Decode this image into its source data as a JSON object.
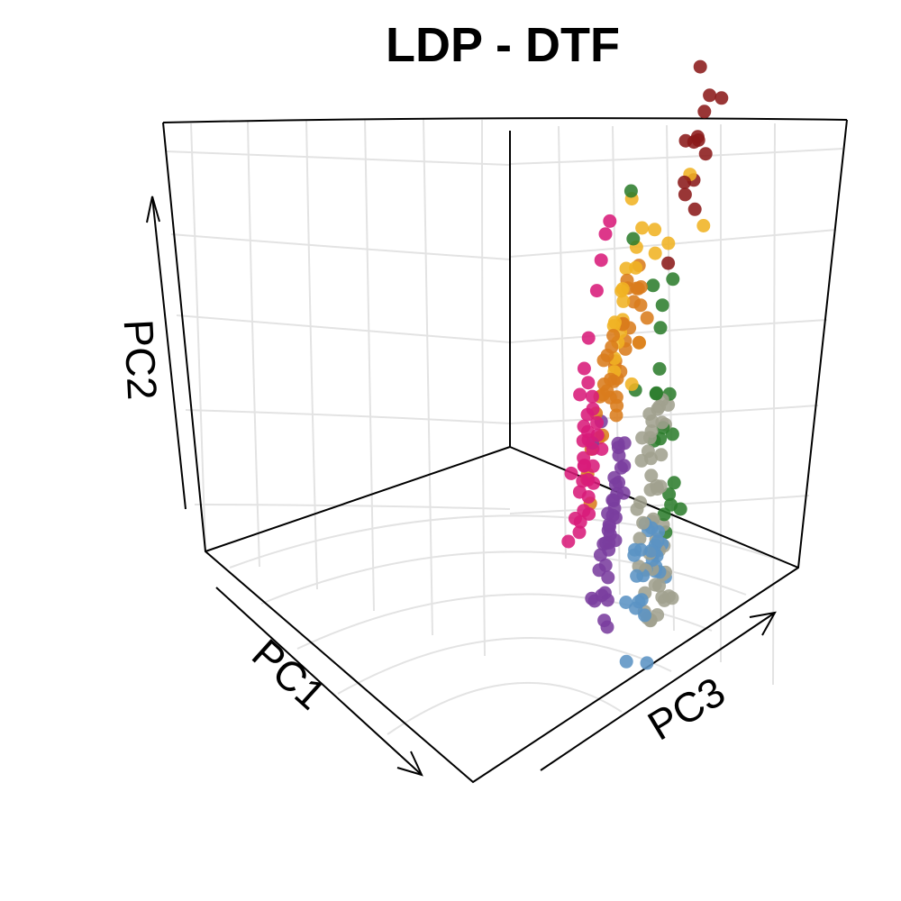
{
  "chart_data": {
    "type": "scatter",
    "projection": "3d",
    "title": "LDP - DTF",
    "axes": {
      "x": "PC1",
      "y": "PC2",
      "z": "PC3"
    },
    "grid": true,
    "legend": "none",
    "groups": [
      {
        "color": "#8B1A1A",
        "points": [
          [
            -7.8,
            5.1,
            -1.2
          ],
          [
            -7.2,
            5.3,
            -0.4
          ],
          [
            -5.6,
            4.3,
            -0.6
          ],
          [
            -5.4,
            4.0,
            0.2
          ],
          [
            -4.8,
            4.6,
            0.5
          ],
          [
            -4.2,
            4.2,
            0.8
          ],
          [
            -4.6,
            3.7,
            0.4
          ],
          [
            -4.0,
            3.4,
            0.9
          ],
          [
            -5.9,
            3.0,
            -0.8
          ],
          [
            -4.8,
            2.4,
            -0.2
          ],
          [
            -5.5,
            2.6,
            -0.9
          ],
          [
            -6.1,
            2.0,
            -1.3
          ],
          [
            -5.2,
            1.7,
            -0.6
          ],
          [
            -6.6,
            1.3,
            -1.5
          ],
          [
            -4.6,
            2.1,
            0.3
          ],
          [
            -3.8,
            1.5,
            0.4
          ]
        ]
      },
      {
        "color": "#F0B323",
        "points": [
          [
            -1.6,
            5.0,
            1.7
          ],
          [
            -1.9,
            4.0,
            2.4
          ],
          [
            -3.9,
            3.6,
            0.9
          ],
          [
            -2.2,
            3.3,
            1.2
          ],
          [
            -3.4,
            3.1,
            1.8
          ],
          [
            -2.6,
            2.9,
            1.3
          ],
          [
            -3.3,
            2.6,
            0.2
          ],
          [
            -1.8,
            2.6,
            1.2
          ],
          [
            -2.5,
            2.4,
            0.6
          ],
          [
            -2.6,
            1.8,
            0.4
          ],
          [
            -1.3,
            2.2,
            1.7
          ],
          [
            -4.3,
            1.6,
            -0.5
          ],
          [
            -2.9,
            1.2,
            0.1
          ],
          [
            -2.2,
            1.4,
            0.6
          ],
          [
            -1.9,
            1.3,
            1.0
          ],
          [
            -3.6,
            -0.2,
            -0.9
          ],
          [
            -3.8,
            1.1,
            -0.5
          ],
          [
            -2.0,
            0.8,
            0.8
          ],
          [
            -1.7,
            1.7,
            1.8
          ],
          [
            -1.9,
            0.6,
            0.9
          ],
          [
            -2.6,
            1.1,
            0.4
          ],
          [
            -1.6,
            0.8,
            1.7
          ]
        ]
      },
      {
        "color": "#D97C1C",
        "points": [
          [
            -3.6,
            1.4,
            -0.2
          ],
          [
            -3.4,
            1.0,
            -0.3
          ],
          [
            -3.0,
            1.6,
            0.1
          ],
          [
            -3.2,
            1.3,
            0.2
          ],
          [
            -2.7,
            1.5,
            0.6
          ],
          [
            -2.5,
            1.1,
            0.5
          ],
          [
            -2.3,
            1.3,
            0.9
          ],
          [
            -2.1,
            1.0,
            1.0
          ],
          [
            -1.9,
            1.4,
            1.2
          ],
          [
            -2.8,
            0.8,
            0.2
          ],
          [
            -2.4,
            0.6,
            0.3
          ],
          [
            -2.2,
            0.4,
            0.6
          ],
          [
            -2.0,
            0.8,
            0.6
          ],
          [
            -1.8,
            0.5,
            0.9
          ],
          [
            -1.6,
            0.7,
            1.2
          ],
          [
            -1.5,
            0.9,
            1.4
          ],
          [
            -1.3,
            0.5,
            1.6
          ],
          [
            -1.2,
            0.8,
            1.7
          ],
          [
            -1.4,
            1.2,
            1.6
          ],
          [
            -1.0,
            0.6,
            1.9
          ],
          [
            -1.7,
            0.2,
            0.8
          ],
          [
            -2.0,
            -0.2,
            0.4
          ],
          [
            -1.8,
            -0.4,
            0.5
          ],
          [
            -1.5,
            -0.6,
            0.9
          ],
          [
            -1.3,
            -0.3,
            1.2
          ],
          [
            -4.4,
            0.0,
            -1.1
          ],
          [
            -3.3,
            -0.1,
            -0.6
          ],
          [
            -2.6,
            0.1,
            0.2
          ],
          [
            -2.2,
            -0.1,
            0.3
          ],
          [
            -1.1,
            -0.5,
            1.1
          ],
          [
            -0.8,
            -0.9,
            1.3
          ],
          [
            -0.6,
            -1.2,
            1.6
          ],
          [
            -1.1,
            -1.1,
            1.0
          ],
          [
            -4.0,
            -1.5,
            -1.6
          ],
          [
            -2.7,
            1.9,
            0.8
          ],
          [
            -2.5,
            1.7,
            1.0
          ],
          [
            -2.1,
            1.9,
            1.6
          ],
          [
            -1.7,
            1.7,
            1.8
          ],
          [
            -1.6,
            0.3,
            1.1
          ],
          [
            -1.9,
            0.1,
            0.7
          ]
        ]
      },
      {
        "color": "#A0A08E",
        "points": [
          [
            -0.6,
            1.8,
            3.6
          ],
          [
            -0.4,
            1.5,
            3.8
          ],
          [
            -0.8,
            1.4,
            3.3
          ],
          [
            -0.2,
            1.7,
            4.1
          ],
          [
            0.1,
            1.3,
            4.3
          ],
          [
            -0.5,
            1.1,
            3.4
          ],
          [
            -0.9,
            0.9,
            3.0
          ],
          [
            -0.2,
            0.8,
            3.7
          ],
          [
            0.4,
            0.9,
            4.6
          ],
          [
            0.2,
            0.6,
            4.3
          ],
          [
            -0.7,
            0.4,
            3.1
          ],
          [
            -0.4,
            0.2,
            3.5
          ],
          [
            0.0,
            0.3,
            3.9
          ],
          [
            0.5,
            0.2,
            4.5
          ],
          [
            0.9,
            0.2,
            5.0
          ],
          [
            1.2,
            0.3,
            5.4
          ],
          [
            1.5,
            0.1,
            5.8
          ],
          [
            1.7,
            0.4,
            6.1
          ],
          [
            1.8,
            0.0,
            6.3
          ],
          [
            2.0,
            0.2,
            6.6
          ],
          [
            1.4,
            -0.3,
            5.5
          ],
          [
            1.0,
            -0.4,
            5.0
          ],
          [
            0.6,
            -0.5,
            4.5
          ],
          [
            0.2,
            -0.3,
            3.9
          ],
          [
            -0.3,
            -0.4,
            3.3
          ],
          [
            -1.0,
            -0.2,
            2.6
          ],
          [
            -1.3,
            0.0,
            2.3
          ],
          [
            -0.5,
            -0.8,
            3.0
          ],
          [
            0.0,
            -0.9,
            3.6
          ],
          [
            0.5,
            -1.0,
            4.1
          ],
          [
            0.8,
            -0.7,
            4.6
          ],
          [
            1.1,
            -0.9,
            4.9
          ],
          [
            1.4,
            -1.0,
            5.2
          ],
          [
            1.7,
            -0.8,
            5.6
          ],
          [
            1.9,
            -0.6,
            5.9
          ],
          [
            2.1,
            -0.4,
            6.1
          ],
          [
            2.2,
            -0.1,
            6.4
          ],
          [
            1.6,
            -0.3,
            5.9
          ],
          [
            1.3,
            1.0,
            5.3
          ],
          [
            0.7,
            1.2,
            4.8
          ],
          [
            0.3,
            1.8,
            4.2
          ],
          [
            0.1,
            2.3,
            4.2
          ],
          [
            0.2,
            2.6,
            4.6
          ],
          [
            1.0,
            0.7,
            5.3
          ],
          [
            2.3,
            0.4,
            6.7
          ],
          [
            0.6,
            -0.2,
            4.9
          ],
          [
            1.2,
            -0.5,
            5.4
          ],
          [
            -1.4,
            0.5,
            2.4
          ]
        ]
      },
      {
        "color": "#2E7D2E",
        "points": [
          [
            -1.2,
            5.6,
            2.1
          ],
          [
            -0.4,
            5.4,
            3.0
          ],
          [
            0.6,
            5.6,
            4.6
          ],
          [
            1.4,
            6.1,
            5.7
          ],
          [
            1.6,
            7.0,
            6.2
          ],
          [
            0.5,
            4.6,
            4.7
          ],
          [
            1.0,
            4.2,
            5.2
          ],
          [
            1.8,
            3.7,
            6.4
          ],
          [
            2.0,
            3.6,
            6.1
          ],
          [
            0.7,
            3.3,
            4.8
          ],
          [
            0.9,
            3.5,
            5.0
          ],
          [
            2.9,
            3.8,
            7.6
          ],
          [
            3.4,
            3.8,
            8.3
          ],
          [
            1.0,
            2.9,
            5.3
          ],
          [
            0.7,
            2.3,
            4.9
          ],
          [
            1.7,
            2.2,
            6.2
          ],
          [
            -0.6,
            2.0,
            3.8
          ],
          [
            1.6,
            1.2,
            6.0
          ],
          [
            0.7,
            0.9,
            5.2
          ],
          [
            0.4,
            0.3,
            4.7
          ],
          [
            -1.6,
            0.7,
            1.8
          ]
        ]
      },
      {
        "color": "#5B93C4",
        "points": [
          [
            1.6,
            0.9,
            5.9
          ],
          [
            1.4,
            0.6,
            5.5
          ],
          [
            1.8,
            0.4,
            6.2
          ],
          [
            1.3,
            -0.1,
            5.4
          ],
          [
            1.0,
            -0.4,
            5.2
          ],
          [
            0.5,
            -0.6,
            4.6
          ],
          [
            0.0,
            -0.8,
            4.1
          ],
          [
            -0.3,
            -0.9,
            3.8
          ],
          [
            0.4,
            -1.1,
            4.2
          ],
          [
            0.9,
            -1.3,
            4.6
          ],
          [
            1.2,
            -1.3,
            5.0
          ],
          [
            -0.6,
            -1.2,
            3.3
          ],
          [
            -0.3,
            -1.4,
            3.6
          ],
          [
            0.1,
            -1.6,
            3.8
          ],
          [
            0.5,
            -1.8,
            4.1
          ],
          [
            -0.8,
            -1.5,
            3.0
          ],
          [
            -1.1,
            -1.7,
            2.6
          ],
          [
            -0.7,
            -1.9,
            2.9
          ],
          [
            -0.3,
            -2.1,
            3.2
          ],
          [
            0.2,
            -2.3,
            3.7
          ],
          [
            -0.9,
            -2.3,
            2.5
          ],
          [
            -1.3,
            -2.6,
            2.1
          ],
          [
            -0.4,
            -2.9,
            2.8
          ],
          [
            1.4,
            -2.3,
            4.7
          ],
          [
            2.0,
            -1.5,
            5.9
          ],
          [
            1.1,
            -0.2,
            5.2
          ],
          [
            0.9,
            -0.3,
            4.9
          ],
          [
            -0.2,
            -1.3,
            3.8
          ]
        ]
      },
      {
        "color": "#7A3E9E",
        "points": [
          [
            -1.6,
            -0.6,
            1.5
          ],
          [
            -1.4,
            -0.9,
            1.7
          ],
          [
            -1.1,
            -1.2,
            2.0
          ],
          [
            -1.7,
            -1.3,
            1.3
          ],
          [
            -1.4,
            -1.6,
            1.5
          ],
          [
            -1.0,
            -1.7,
            1.8
          ],
          [
            -0.7,
            -1.4,
            2.2
          ],
          [
            -0.5,
            -1.7,
            2.4
          ],
          [
            -2.0,
            -1.1,
            0.9
          ],
          [
            -2.2,
            -1.4,
            0.7
          ],
          [
            -1.9,
            -1.8,
            0.9
          ],
          [
            -1.6,
            -2.0,
            1.2
          ],
          [
            -1.2,
            -2.2,
            1.5
          ],
          [
            -0.8,
            -2.3,
            1.9
          ],
          [
            -0.4,
            -2.5,
            2.3
          ],
          [
            -2.5,
            -1.9,
            0.4
          ],
          [
            -2.3,
            -2.3,
            0.6
          ],
          [
            -2.0,
            -2.6,
            0.8
          ],
          [
            -1.6,
            -2.8,
            1.1
          ],
          [
            -1.1,
            -3.0,
            1.5
          ],
          [
            -0.7,
            -3.2,
            1.9
          ],
          [
            -0.3,
            -3.4,
            2.3
          ],
          [
            0.0,
            -3.2,
            2.7
          ],
          [
            -2.7,
            -2.8,
            0.1
          ],
          [
            -2.3,
            -3.1,
            0.3
          ],
          [
            -1.9,
            -3.4,
            0.6
          ],
          [
            -1.5,
            -3.6,
            0.9
          ],
          [
            -1.0,
            -3.8,
            1.3
          ],
          [
            -2.9,
            -3.4,
            -0.2
          ],
          [
            -2.6,
            -3.8,
            0.0
          ],
          [
            -2.2,
            -4.0,
            0.2
          ],
          [
            -1.4,
            -4.2,
            0.8
          ],
          [
            -3.1,
            -4.2,
            -0.5
          ],
          [
            -2.9,
            -4.4,
            -0.3
          ],
          [
            -1.7,
            -1.0,
            0.5
          ],
          [
            -2.6,
            -1.4,
            -0.2
          ],
          [
            -1.2,
            -2.6,
            1.4
          ],
          [
            -0.9,
            -3.5,
            1.6
          ],
          [
            -0.2,
            -2.8,
            2.5
          ]
        ]
      },
      {
        "color": "#D81B7A",
        "points": [
          [
            -5.4,
            0.2,
            -2.9
          ],
          [
            -5.0,
            0.3,
            -2.6
          ],
          [
            -4.6,
            0.1,
            -2.3
          ],
          [
            -4.2,
            -0.2,
            -2.0
          ],
          [
            -3.6,
            -0.7,
            -1.6
          ],
          [
            -3.2,
            -1.0,
            -1.3
          ],
          [
            -2.8,
            -1.2,
            -1.0
          ],
          [
            -3.4,
            -1.5,
            -1.4
          ],
          [
            -3.0,
            -1.8,
            -1.0
          ],
          [
            -2.6,
            -2.0,
            -0.7
          ],
          [
            -3.7,
            -2.1,
            -1.6
          ],
          [
            -3.2,
            -2.4,
            -1.2
          ],
          [
            -2.8,
            -2.6,
            -0.9
          ],
          [
            -2.4,
            -2.7,
            -0.5
          ],
          [
            -4.0,
            -2.7,
            -1.9
          ],
          [
            -3.5,
            -2.9,
            -1.5
          ],
          [
            -3.1,
            -3.1,
            -1.2
          ],
          [
            -2.7,
            -3.3,
            -0.9
          ],
          [
            -2.2,
            -3.4,
            -0.5
          ],
          [
            -4.3,
            -3.3,
            -2.1
          ],
          [
            -3.9,
            -3.5,
            -1.8
          ],
          [
            -3.4,
            -3.7,
            -1.4
          ],
          [
            -2.9,
            -3.9,
            -1.0
          ],
          [
            -2.5,
            -4.0,
            -0.7
          ],
          [
            -4.6,
            -3.9,
            -2.4
          ],
          [
            -4.1,
            -4.1,
            -2.0
          ],
          [
            -3.6,
            -4.3,
            -1.6
          ],
          [
            -3.1,
            -4.4,
            -1.3
          ],
          [
            -4.9,
            -4.5,
            -2.6
          ],
          [
            -4.3,
            -4.7,
            -2.2
          ],
          [
            -3.8,
            -4.9,
            -1.8
          ],
          [
            -2.4,
            -4.2,
            -0.9
          ],
          [
            -3.0,
            -2.1,
            -1.1
          ],
          [
            -2.0,
            -2.2,
            -0.4
          ],
          [
            -3.3,
            -3.3,
            -1.4
          ]
        ]
      }
    ]
  }
}
